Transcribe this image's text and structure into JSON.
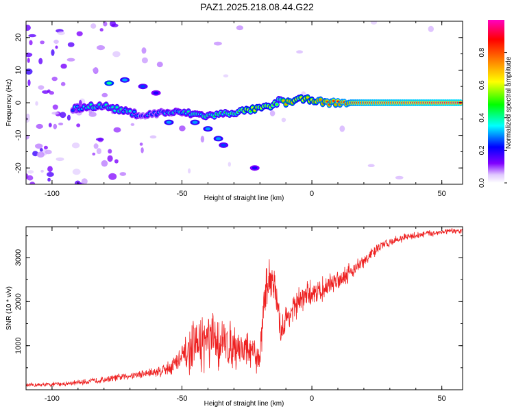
{
  "title": "PAZ1.2025.218.08.44.G22",
  "chart_data": [
    {
      "type": "heatmap",
      "xlabel": "Height of straight line (km)",
      "ylabel": "Frequency (Hz)",
      "xlim": [
        -110,
        58
      ],
      "ylim": [
        -25,
        25
      ],
      "xticks": [
        "-100",
        "-50",
        "0",
        "50"
      ],
      "yticks": [
        "20",
        "10",
        "0",
        "-10",
        "-20"
      ],
      "colorbar": {
        "label": "Normalized spectral amplitude",
        "range": [
          0,
          1
        ],
        "ticks": [
          "0.0",
          "0.2",
          "0.4",
          "0.6",
          "0.8"
        ],
        "colormap": [
          "#ffffff",
          "#8000ff",
          "#0000ff",
          "#00ffff",
          "#00ff00",
          "#ffff00",
          "#ff8000",
          "#ff0000",
          "#ff00c0"
        ]
      },
      "ridge": [
        {
          "x": -92,
          "y": -2,
          "v": 0.3
        },
        {
          "x": -85,
          "y": -1,
          "v": 0.4
        },
        {
          "x": -80,
          "y": -1,
          "v": 0.35
        },
        {
          "x": -75,
          "y": -2,
          "v": 0.35
        },
        {
          "x": -70,
          "y": -3,
          "v": 0.35
        },
        {
          "x": -65,
          "y": -4,
          "v": 0.25
        },
        {
          "x": -58,
          "y": -3,
          "v": 0.3
        },
        {
          "x": -50,
          "y": -3,
          "v": 0.35
        },
        {
          "x": -40,
          "y": -4,
          "v": 0.4
        },
        {
          "x": -30,
          "y": -3,
          "v": 0.45
        },
        {
          "x": -22,
          "y": -2,
          "v": 0.6
        },
        {
          "x": -15,
          "y": -1,
          "v": 0.55
        },
        {
          "x": -12,
          "y": 1,
          "v": 0.5
        },
        {
          "x": -10,
          "y": 0,
          "v": 0.8
        },
        {
          "x": -5,
          "y": 1,
          "v": 0.6
        },
        {
          "x": 0,
          "y": 1,
          "v": 0.65
        },
        {
          "x": 5,
          "y": 0,
          "v": 0.75
        },
        {
          "x": 10,
          "y": 0,
          "v": 0.8
        },
        {
          "x": 15,
          "y": 0,
          "v": 0.85
        },
        {
          "x": 20,
          "y": 0,
          "v": 0.9
        },
        {
          "x": 58,
          "y": 0,
          "v": 0.95
        }
      ],
      "blobs": [
        {
          "x": -78,
          "y": 6,
          "v": 0.4
        },
        {
          "x": -72,
          "y": 7,
          "v": 0.3
        },
        {
          "x": -65,
          "y": 5,
          "v": 0.25
        },
        {
          "x": -60,
          "y": 3,
          "v": 0.2
        },
        {
          "x": -55,
          "y": -6,
          "v": 0.3
        },
        {
          "x": -45,
          "y": -6,
          "v": 0.3
        },
        {
          "x": -40,
          "y": -8,
          "v": 0.3
        },
        {
          "x": -36,
          "y": -11,
          "v": 0.3
        },
        {
          "x": -34,
          "y": -13,
          "v": 0.25
        },
        {
          "x": -22,
          "y": -20,
          "v": 0.2
        }
      ]
    },
    {
      "type": "line",
      "xlabel": "Height of straight line (km)",
      "ylabel": "SNR (10 * v/v)",
      "xlim": [
        -110,
        58
      ],
      "ylim": [
        0,
        3700
      ],
      "xticks": [
        "-100",
        "-50",
        "0",
        "50"
      ],
      "yticks": [
        "3000",
        "2000",
        "1000"
      ],
      "series": [
        {
          "color": "#ee2020",
          "x": [
            -110,
            -100,
            -90,
            -80,
            -70,
            -60,
            -55,
            -50,
            -45,
            -40,
            -35,
            -30,
            -25,
            -20,
            -18,
            -15,
            -12,
            -10,
            -5,
            0,
            5,
            10,
            15,
            20,
            25,
            30,
            35,
            40,
            45,
            50,
            55,
            58
          ],
          "y": [
            100,
            120,
            160,
            230,
            320,
            400,
            500,
            700,
            1000,
            1100,
            1050,
            1000,
            900,
            700,
            2300,
            2600,
            1300,
            1600,
            2000,
            2200,
            2300,
            2500,
            2700,
            2900,
            3200,
            3350,
            3450,
            3500,
            3550,
            3580,
            3600,
            3600
          ],
          "noise": [
            50,
            60,
            70,
            80,
            100,
            150,
            200,
            400,
            700,
            800,
            700,
            600,
            500,
            400,
            600,
            600,
            400,
            400,
            400,
            350,
            300,
            300,
            250,
            200,
            150,
            120,
            100,
            100,
            90,
            80,
            80,
            80
          ]
        }
      ]
    }
  ]
}
